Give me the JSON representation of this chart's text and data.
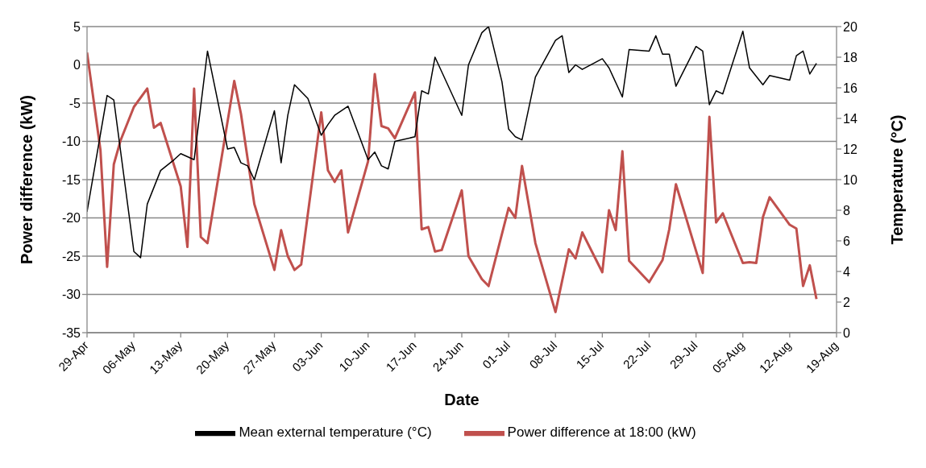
{
  "chart_data": {
    "type": "line",
    "xlabel": "Date",
    "ylabel": "Power difference (kW)",
    "y2label": "Temperature (°C)",
    "xlim": [
      "--04-29",
      "--08-19"
    ],
    "xticks": [
      {
        "value": "--04-29",
        "label": "29-Apr"
      },
      {
        "value": "--05-06",
        "label": "06-May"
      },
      {
        "value": "--05-13",
        "label": "13-May"
      },
      {
        "value": "--05-20",
        "label": "20-May"
      },
      {
        "value": "--05-27",
        "label": "27-May"
      },
      {
        "value": "--06-03",
        "label": "03-Jun"
      },
      {
        "value": "--06-10",
        "label": "10-Jun"
      },
      {
        "value": "--06-17",
        "label": "17-Jun"
      },
      {
        "value": "--06-24",
        "label": "24-Jun"
      },
      {
        "value": "--07-01",
        "label": "01-Jul"
      },
      {
        "value": "--07-08",
        "label": "08-Jul"
      },
      {
        "value": "--07-15",
        "label": "15-Jul"
      },
      {
        "value": "--07-22",
        "label": "22-Jul"
      },
      {
        "value": "--07-29",
        "label": "29-Jul"
      },
      {
        "value": "--08-05",
        "label": "05-Aug"
      },
      {
        "value": "--08-12",
        "label": "12-Aug"
      },
      {
        "value": "--08-19",
        "label": "19-Aug"
      }
    ],
    "ylim": [
      -35,
      5
    ],
    "yticks": [
      -35,
      -30,
      -25,
      -20,
      -15,
      -10,
      -5,
      0,
      5
    ],
    "y2lim": [
      0,
      20
    ],
    "y2ticks": [
      0,
      2,
      4,
      6,
      8,
      10,
      12,
      14,
      16,
      18,
      20
    ],
    "grid": "y",
    "legend": "bottom",
    "series": [
      {
        "name": "Power difference at 18:00 (kW)",
        "color": "#c0504d",
        "x": [
          "--04-29",
          "--05-01",
          "--05-02",
          "--05-03",
          "--05-04",
          "--05-06",
          "--05-08",
          "--05-09",
          "--05-10",
          "--05-13",
          "--05-14",
          "--05-15",
          "--05-16",
          "--05-17",
          "--05-21",
          "--05-22",
          "--05-24",
          "--05-27",
          "--05-28",
          "--05-29",
          "--05-30",
          "--05-31",
          "--06-03",
          "--06-04",
          "--06-05",
          "--06-06",
          "--06-07",
          "--06-10",
          "--06-11",
          "--06-12",
          "--06-13",
          "--06-14",
          "--06-17",
          "--06-18",
          "--06-19",
          "--06-20",
          "--06-21",
          "--06-24",
          "--06-25",
          "--06-27",
          "--06-28",
          "--07-01",
          "--07-02",
          "--07-03",
          "--07-05",
          "--07-08",
          "--07-10",
          "--07-11",
          "--07-12",
          "--07-15",
          "--07-16",
          "--07-17",
          "--07-18",
          "--07-19",
          "--07-22",
          "--07-24",
          "--07-25",
          "--07-26",
          "--07-30",
          "--07-31",
          "--08-01",
          "--08-02",
          "--08-05",
          "--08-06",
          "--08-07",
          "--08-08",
          "--08-09",
          "--08-12",
          "--08-13",
          "--08-14",
          "--08-15",
          "--08-16"
        ],
        "values": [
          1.6,
          -11.1,
          -26.4,
          -13.0,
          -9.9,
          -5.5,
          -3.1,
          -8.2,
          -7.6,
          -15.9,
          -23.8,
          -3.1,
          -22.5,
          -23.3,
          -2.1,
          -6.4,
          -18.2,
          -26.8,
          -21.6,
          -25,
          -26.8,
          -26.1,
          -6.2,
          -13.8,
          -15.3,
          -13.8,
          -21.9,
          -12.6,
          -1.2,
          -8.0,
          -8.3,
          -9.6,
          -3.6,
          -21.5,
          -21.2,
          -24.4,
          -24.2,
          -16.4,
          -25,
          -28,
          -28.9,
          -18.7,
          -20,
          -13.2,
          -23.3,
          -32.3,
          -24.1,
          -25.3,
          -21.9,
          -27.1,
          -19,
          -21.6,
          -11.3,
          -25.6,
          -28.4,
          -25.5,
          -21.5,
          -15.6,
          -27.2,
          -6.8,
          -20.6,
          -19.4,
          -25.9,
          -25.8,
          -25.9,
          -19.9,
          -17.3,
          -20.9,
          -21.4,
          -28.9,
          -26.2,
          -30.6
        ]
      },
      {
        "name": "Mean external temperature (°C)",
        "color": "#000000",
        "axis": "y2",
        "x": [
          "--04-29",
          "--05-02",
          "--05-03",
          "--05-06",
          "--05-07",
          "--05-08",
          "--05-10",
          "--05-12",
          "--05-13",
          "--05-15",
          "--05-17",
          "--05-20",
          "--05-21",
          "--05-22",
          "--05-23",
          "--05-24",
          "--05-27",
          "--05-28",
          "--05-29",
          "--05-30",
          "--06-01",
          "--06-03",
          "--06-04",
          "--06-05",
          "--06-07",
          "--06-10",
          "--06-11",
          "--06-12",
          "--06-13",
          "--06-14",
          "--06-17",
          "--06-18",
          "--06-19",
          "--06-20",
          "--06-24",
          "--06-25",
          "--06-27",
          "--06-28",
          "--06-30",
          "--07-01",
          "--07-02",
          "--07-03",
          "--07-05",
          "--07-08",
          "--07-09",
          "--07-10",
          "--07-11",
          "--07-12",
          "--07-15",
          "--07-16",
          "--07-18",
          "--07-19",
          "--07-22",
          "--07-23",
          "--07-24",
          "--07-25",
          "--07-26",
          "--07-29",
          "--07-30",
          "--07-31",
          "--08-01",
          "--08-02",
          "--08-05",
          "--08-06",
          "--08-08",
          "--08-09",
          "--08-12",
          "--08-13",
          "--08-14",
          "--08-15",
          "--08-16"
        ],
        "values": [
          7.9,
          15.5,
          15.2,
          5.3,
          4.9,
          8.4,
          10.6,
          11.3,
          11.7,
          11.3,
          18.4,
          12.0,
          12.1,
          11.1,
          10.9,
          10.0,
          14.5,
          11.1,
          14.2,
          16.2,
          15.3,
          12.9,
          13.6,
          14.2,
          14.8,
          11.3,
          11.8,
          10.9,
          10.7,
          12.5,
          12.8,
          15.8,
          15.6,
          18.0,
          14.2,
          17.5,
          19.6,
          20,
          16.4,
          13.3,
          12.8,
          12.6,
          16.7,
          19.1,
          19.4,
          17.0,
          17.5,
          17.2,
          17.9,
          17.3,
          15.4,
          18.5,
          18.4,
          19.4,
          18.2,
          18.2,
          16.1,
          18.7,
          18.4,
          14.9,
          15.8,
          15.6,
          19.7,
          17.3,
          16.2,
          16.8,
          16.5,
          18.1,
          18.4,
          16.9,
          17.6
        ]
      }
    ]
  }
}
